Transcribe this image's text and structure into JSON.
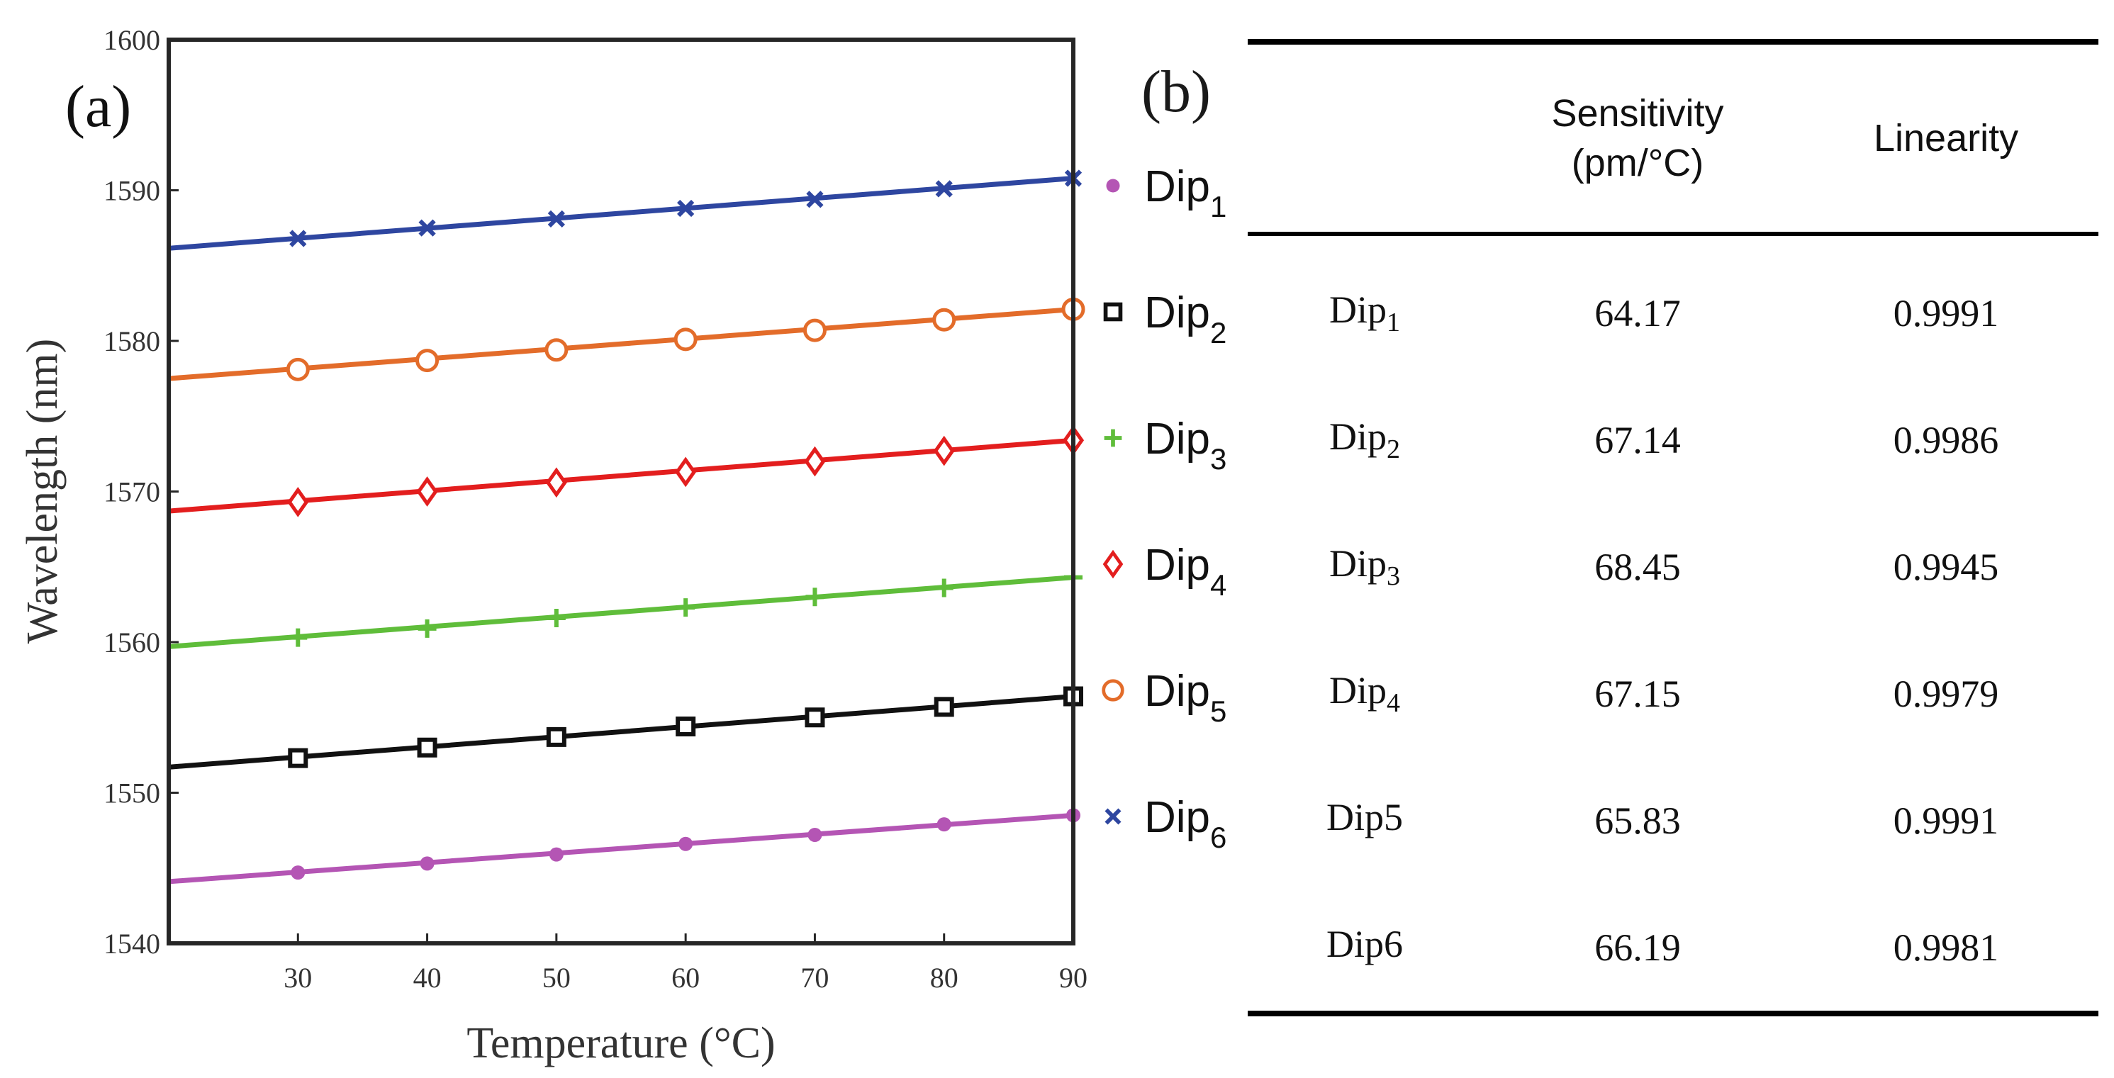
{
  "panel_a_label": "(a)",
  "panel_b_label": "(b)",
  "chart_data": {
    "type": "scatter",
    "xlabel": "Temperature (°C)",
    "ylabel": "Wavelength (nm)",
    "xlim": [
      20,
      90
    ],
    "ylim": [
      1540,
      1600
    ],
    "xticks": [
      30,
      40,
      50,
      60,
      70,
      80,
      90
    ],
    "yticks": [
      1540,
      1550,
      1560,
      1570,
      1580,
      1590,
      1600
    ],
    "x": [
      30,
      40,
      50,
      60,
      70,
      80,
      90
    ],
    "grid": false,
    "legend_position": "right-outside",
    "series": [
      {
        "name": "Dip",
        "sub": "6",
        "marker": "x",
        "color": "#2e46a0",
        "values": [
          1586.8,
          1587.5,
          1588.1,
          1588.8,
          1589.4,
          1590.1,
          1590.8
        ],
        "fit": [
          1586.15,
          1590.8
        ]
      },
      {
        "name": "Dip",
        "sub": "5",
        "marker": "circle",
        "color": "#e36c2a",
        "values": [
          1578.1,
          1578.7,
          1579.4,
          1580.1,
          1580.7,
          1581.4,
          1582.1
        ],
        "fit": [
          1577.5,
          1582.1
        ]
      },
      {
        "name": "Dip",
        "sub": "4",
        "marker": "diamond",
        "color": "#e31e1e",
        "values": [
          1569.3,
          1570.0,
          1570.6,
          1571.3,
          1572.0,
          1572.7,
          1573.4
        ],
        "fit": [
          1568.7,
          1573.4
        ]
      },
      {
        "name": "Dip",
        "sub": "3",
        "marker": "plus",
        "color": "#5fbd3a",
        "values": [
          1560.3,
          1560.9,
          1561.6,
          1562.3,
          1563.0,
          1563.6,
          1564.3
        ],
        "fit": [
          1559.7,
          1564.3
        ]
      },
      {
        "name": "Dip",
        "sub": "2",
        "marker": "square",
        "color": "#111111",
        "values": [
          1552.3,
          1553.0,
          1553.7,
          1554.4,
          1555.0,
          1555.7,
          1556.4
        ],
        "fit": [
          1551.7,
          1556.4
        ]
      },
      {
        "name": "Dip",
        "sub": "1",
        "marker": "dot",
        "color": "#b455b4",
        "values": [
          1544.7,
          1545.3,
          1545.9,
          1546.6,
          1547.2,
          1547.9,
          1548.5
        ],
        "fit": [
          1544.1,
          1548.5
        ]
      }
    ],
    "legend": [
      {
        "name": "Dip",
        "sub": "1",
        "marker": "dot",
        "color": "#b455b4"
      },
      {
        "name": "Dip",
        "sub": "2",
        "marker": "square",
        "color": "#111111"
      },
      {
        "name": "Dip",
        "sub": "3",
        "marker": "plus",
        "color": "#5fbd3a"
      },
      {
        "name": "Dip",
        "sub": "4",
        "marker": "diamond",
        "color": "#e31e1e"
      },
      {
        "name": "Dip",
        "sub": "5",
        "marker": "circle",
        "color": "#e36c2a"
      },
      {
        "name": "Dip",
        "sub": "6",
        "marker": "x",
        "color": "#2e46a0"
      }
    ]
  },
  "table": {
    "headers": {
      "col1": "",
      "col2_line1": "Sensitivity",
      "col2_line2": "(pm/°C)",
      "col3": "Linearity"
    },
    "rows": [
      {
        "name": "Dip",
        "sub": "1",
        "sensitivity": "64.17",
        "linearity": "0.9991"
      },
      {
        "name": "Dip",
        "sub": "2",
        "sensitivity": "67.14",
        "linearity": "0.9986"
      },
      {
        "name": "Dip",
        "sub": "3",
        "sensitivity": "68.45",
        "linearity": "0.9945"
      },
      {
        "name": "Dip",
        "sub": "4",
        "sensitivity": "67.15",
        "linearity": "0.9979"
      },
      {
        "name": "Dip5",
        "sub": "",
        "sensitivity": "65.83",
        "linearity": "0.9991"
      },
      {
        "name": "Dip6",
        "sub": "",
        "sensitivity": "66.19",
        "linearity": "0.9981"
      }
    ]
  }
}
